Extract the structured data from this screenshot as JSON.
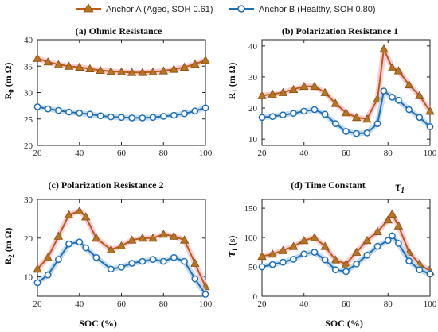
{
  "legend": {
    "a": "Anchor A (Aged, SOH 0.61)",
    "b": "Anchor B (Healthy, SOH 0.80)"
  },
  "colors": {
    "a_line": "#c05a14",
    "a_marker": "#b5761f",
    "a_shadow": "#f3c6d4",
    "b_line": "#1f6fb5",
    "b_marker_fill": "#ffffff",
    "b_shadow": "#bcd6ee"
  },
  "chart_data": [
    {
      "type": "line",
      "title": "(a) Ohmic Resistance",
      "ylabel": "R 0 (m Ω)",
      "xlabel": "",
      "xlim": [
        20,
        100
      ],
      "ylim": [
        20,
        40
      ],
      "xticks": [
        20,
        40,
        60,
        80,
        100
      ],
      "yticks": [
        20,
        25,
        30,
        35,
        40
      ],
      "x": [
        20,
        25,
        30,
        35,
        40,
        45,
        50,
        55,
        60,
        65,
        70,
        75,
        80,
        85,
        90,
        95,
        100
      ],
      "series": [
        {
          "name": "Anchor A (Aged, SOH 0.61)",
          "values": [
            36.5,
            35.8,
            35.3,
            35.0,
            34.8,
            34.5,
            34.2,
            34.0,
            33.9,
            33.8,
            33.8,
            33.9,
            34.1,
            34.4,
            34.8,
            35.4,
            36.1
          ]
        },
        {
          "name": "Anchor B (Healthy, SOH 0.80)",
          "values": [
            27.3,
            26.9,
            26.6,
            26.3,
            26.1,
            25.9,
            25.6,
            25.4,
            25.3,
            25.2,
            25.2,
            25.3,
            25.5,
            25.7,
            26.0,
            26.5,
            27.1
          ]
        }
      ]
    },
    {
      "type": "line",
      "title": "(b) Polarization Resistance 1",
      "ylabel": "R 1 (m Ω)",
      "xlabel": "",
      "xlim": [
        20,
        100
      ],
      "ylim": [
        8,
        42
      ],
      "xticks": [
        20,
        40,
        60,
        80,
        100
      ],
      "yticks": [
        10,
        20,
        30,
        40
      ],
      "x": [
        20,
        25,
        30,
        35,
        40,
        45,
        50,
        55,
        60,
        65,
        70,
        75,
        78,
        82,
        85,
        90,
        95,
        100
      ],
      "series": [
        {
          "name": "Anchor A (Aged, SOH 0.61)",
          "values": [
            24,
            24.5,
            25,
            26,
            27,
            27,
            25,
            21.5,
            18.5,
            17,
            16.5,
            23,
            39,
            33,
            32,
            27.5,
            24,
            19
          ]
        },
        {
          "name": "Anchor B (Healthy, SOH 0.80)",
          "values": [
            17,
            17.3,
            17.8,
            18.3,
            19,
            19.5,
            18,
            15,
            12.5,
            11.8,
            12,
            15,
            25.5,
            23.5,
            22.5,
            19.5,
            17,
            14
          ]
        }
      ]
    },
    {
      "type": "line",
      "title": "(c) Polarization Resistance 2",
      "ylabel": "R 2 (m Ω)",
      "xlabel": "SOC (%)",
      "xlim": [
        20,
        100
      ],
      "ylim": [
        5,
        30
      ],
      "xticks": [
        20,
        40,
        60,
        80,
        100
      ],
      "yticks": [
        10,
        20,
        30
      ],
      "x": [
        20,
        25,
        30,
        35,
        40,
        43,
        48,
        55,
        60,
        65,
        70,
        75,
        80,
        85,
        90,
        95,
        100
      ],
      "series": [
        {
          "name": "Anchor A (Aged, SOH 0.61)",
          "values": [
            12,
            15,
            20.5,
            26,
            27,
            25.5,
            20,
            17,
            18,
            19.5,
            20,
            20,
            21,
            20.5,
            19.5,
            13.5,
            7.5
          ]
        },
        {
          "name": "Anchor B (Healthy, SOH 0.80)",
          "values": [
            8.5,
            10.5,
            14.5,
            18.5,
            19,
            17.5,
            15,
            12,
            12.5,
            13.5,
            14,
            14.5,
            14,
            15,
            14,
            9.5,
            5.5
          ]
        }
      ]
    },
    {
      "type": "line",
      "title": "(d) Time Constant",
      "annotation": "τ1",
      "ylabel": "τ1 (s)",
      "xlabel": "SOC (%)",
      "xlim": [
        20,
        100
      ],
      "ylim": [
        0,
        165
      ],
      "xticks": [
        20,
        40,
        60,
        80,
        100
      ],
      "yticks": [
        0,
        50,
        100,
        150
      ],
      "x": [
        20,
        25,
        30,
        35,
        40,
        45,
        50,
        55,
        60,
        65,
        70,
        75,
        80,
        82,
        85,
        90,
        95,
        100
      ],
      "series": [
        {
          "name": "Anchor A (Aged, SOH 0.61)",
          "values": [
            68,
            72,
            78,
            85,
            95,
            100,
            85,
            62,
            55,
            75,
            95,
            110,
            130,
            140,
            120,
            75,
            55,
            42
          ]
        },
        {
          "name": "Anchor B (Healthy, SOH 0.80)",
          "values": [
            50,
            54,
            58,
            63,
            72,
            75,
            62,
            45,
            42,
            55,
            70,
            85,
            95,
            103,
            90,
            60,
            45,
            38
          ]
        }
      ]
    }
  ]
}
